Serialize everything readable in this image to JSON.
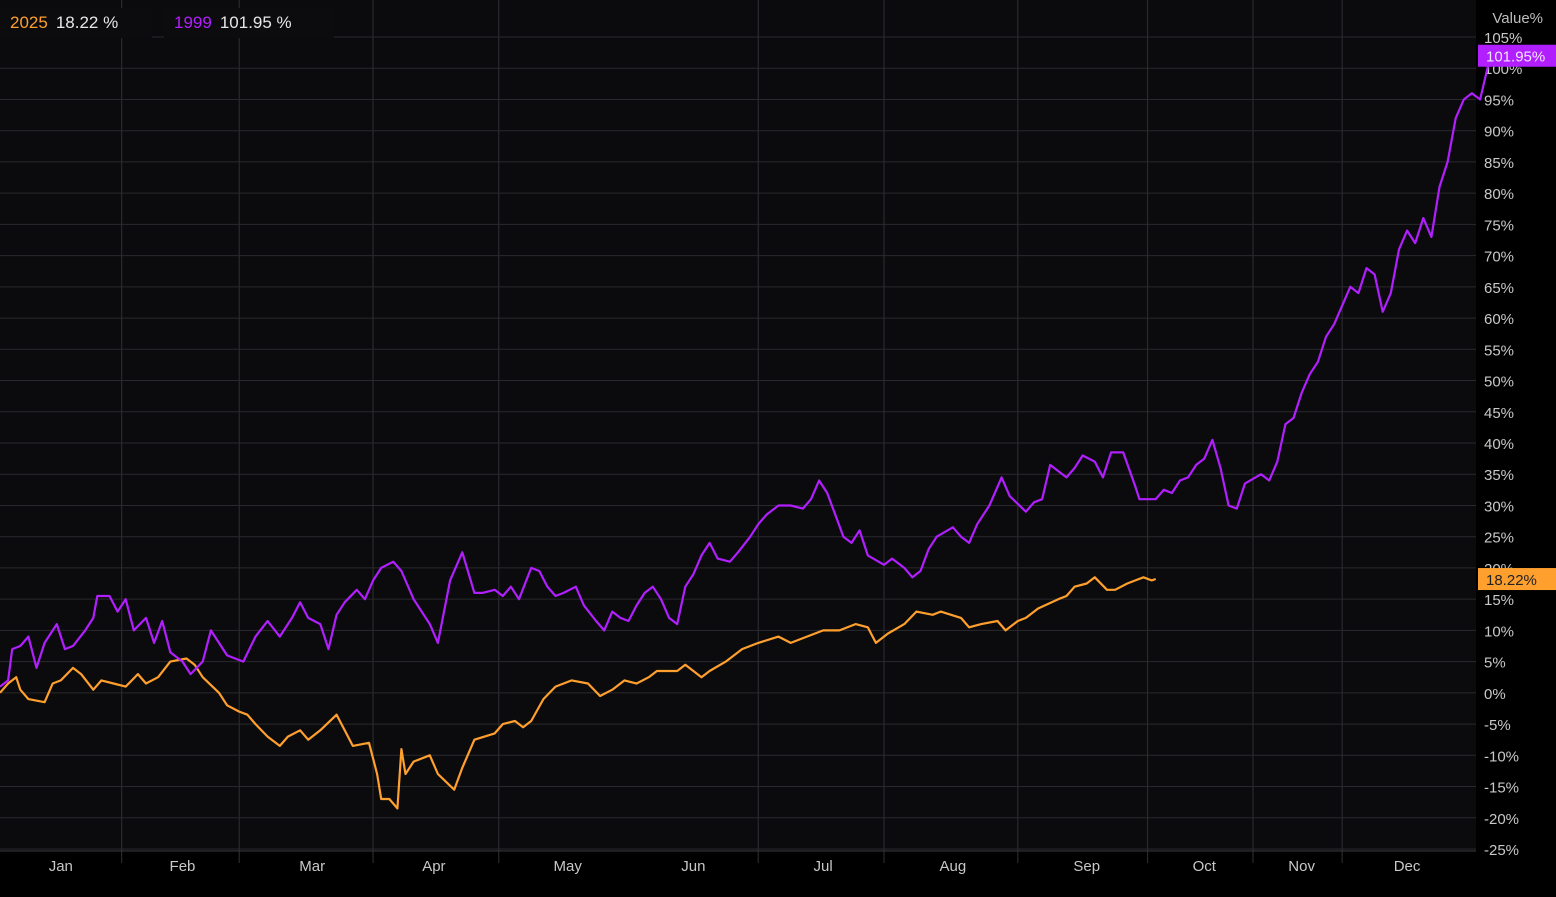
{
  "legend": [
    {
      "year": "2025",
      "value": "18.22 %"
    },
    {
      "year": "1999",
      "value": "101.95 %"
    }
  ],
  "chart_data": {
    "type": "line",
    "ylabel": "Value%",
    "ylim": [
      -25,
      105
    ],
    "ytick_step": 5,
    "x_unit": "day of year",
    "xlim": [
      1,
      365
    ],
    "grid": true,
    "months": [
      "Jan",
      "Feb",
      "Mar",
      "Apr",
      "May",
      "Jun",
      "Jul",
      "Aug",
      "Sep",
      "Oct",
      "Nov",
      "Dec"
    ],
    "month_ticks": [
      {
        "label": "Jan",
        "x": 16
      },
      {
        "label": "Feb",
        "x": 46
      },
      {
        "label": "Mar",
        "x": 78
      },
      {
        "label": "Apr",
        "x": 108
      },
      {
        "label": "May",
        "x": 141
      },
      {
        "label": "Jun",
        "x": 172
      },
      {
        "label": "Jul",
        "x": 204
      },
      {
        "label": "Aug",
        "x": 236
      },
      {
        "label": "Sep",
        "x": 269
      },
      {
        "label": "Oct",
        "x": 298
      },
      {
        "label": "Nov",
        "x": 322
      },
      {
        "label": "Dec",
        "x": 348
      }
    ],
    "boundaries": [
      31,
      60,
      93,
      124,
      188,
      219,
      252,
      284,
      310,
      332
    ],
    "series": [
      {
        "name": "2025",
        "color": "#ff9f2e",
        "end_label": "18.22%",
        "points": [
          [
            1,
            0
          ],
          [
            3,
            1.5
          ],
          [
            5,
            2.5
          ],
          [
            6,
            0.5
          ],
          [
            8,
            -1
          ],
          [
            12,
            -1.5
          ],
          [
            14,
            1.5
          ],
          [
            16,
            2
          ],
          [
            19,
            4
          ],
          [
            21,
            3
          ],
          [
            24,
            0.5
          ],
          [
            26,
            2
          ],
          [
            29,
            1.5
          ],
          [
            32,
            1
          ],
          [
            35,
            3
          ],
          [
            37,
            1.5
          ],
          [
            40,
            2.5
          ],
          [
            43,
            5
          ],
          [
            47,
            5.5
          ],
          [
            49,
            4.5
          ],
          [
            51,
            2.5
          ],
          [
            55,
            0
          ],
          [
            57,
            -2
          ],
          [
            60,
            -3
          ],
          [
            62,
            -3.5
          ],
          [
            64,
            -5
          ],
          [
            67,
            -7
          ],
          [
            70,
            -8.5
          ],
          [
            72,
            -7
          ],
          [
            75,
            -6
          ],
          [
            77,
            -7.5
          ],
          [
            80,
            -6
          ],
          [
            84,
            -3.5
          ],
          [
            86,
            -6
          ],
          [
            88,
            -8.5
          ],
          [
            92,
            -8
          ],
          [
            94,
            -13
          ],
          [
            95,
            -17
          ],
          [
            97,
            -17
          ],
          [
            99,
            -18.5
          ],
          [
            100,
            -9
          ],
          [
            101,
            -13
          ],
          [
            103,
            -11
          ],
          [
            107,
            -10
          ],
          [
            109,
            -13
          ],
          [
            113,
            -15.5
          ],
          [
            115,
            -12
          ],
          [
            118,
            -7.5
          ],
          [
            123,
            -6.5
          ],
          [
            125,
            -5
          ],
          [
            128,
            -4.5
          ],
          [
            130,
            -5.5
          ],
          [
            132,
            -4.5
          ],
          [
            135,
            -1
          ],
          [
            138,
            1
          ],
          [
            142,
            2
          ],
          [
            146,
            1.5
          ],
          [
            149,
            -0.5
          ],
          [
            152,
            0.5
          ],
          [
            155,
            2
          ],
          [
            158,
            1.5
          ],
          [
            161,
            2.5
          ],
          [
            163,
            3.5
          ],
          [
            168,
            3.5
          ],
          [
            170,
            4.5
          ],
          [
            174,
            2.5
          ],
          [
            176,
            3.5
          ],
          [
            180,
            5
          ],
          [
            184,
            7
          ],
          [
            188,
            8
          ],
          [
            193,
            9
          ],
          [
            196,
            8
          ],
          [
            200,
            9
          ],
          [
            204,
            10
          ],
          [
            208,
            10
          ],
          [
            212,
            11
          ],
          [
            215,
            10.5
          ],
          [
            217,
            8
          ],
          [
            220,
            9.5
          ],
          [
            224,
            11
          ],
          [
            227,
            13
          ],
          [
            231,
            12.5
          ],
          [
            233,
            13
          ],
          [
            238,
            12
          ],
          [
            240,
            10.5
          ],
          [
            243,
            11
          ],
          [
            247,
            11.5
          ],
          [
            249,
            10
          ],
          [
            252,
            11.5
          ],
          [
            254,
            12
          ],
          [
            257,
            13.5
          ],
          [
            262,
            15
          ],
          [
            264,
            15.5
          ],
          [
            266,
            17
          ],
          [
            269,
            17.5
          ],
          [
            271,
            18.5
          ],
          [
            274,
            16.5
          ],
          [
            276,
            16.5
          ],
          [
            279,
            17.5
          ],
          [
            281,
            18
          ],
          [
            283,
            18.5
          ],
          [
            285,
            18
          ],
          [
            286,
            18.22
          ]
        ]
      },
      {
        "name": "1999",
        "color": "#b11fff",
        "end_label": "101.95%",
        "points": [
          [
            1,
            1
          ],
          [
            3,
            2
          ],
          [
            4,
            7
          ],
          [
            6,
            7.5
          ],
          [
            8,
            9
          ],
          [
            10,
            4
          ],
          [
            12,
            8
          ],
          [
            15,
            11
          ],
          [
            17,
            7
          ],
          [
            19,
            7.5
          ],
          [
            22,
            10
          ],
          [
            24,
            12
          ],
          [
            25,
            15.5
          ],
          [
            28,
            15.5
          ],
          [
            30,
            13
          ],
          [
            32,
            15
          ],
          [
            34,
            10
          ],
          [
            37,
            12
          ],
          [
            39,
            8
          ],
          [
            41,
            11.5
          ],
          [
            43,
            6.5
          ],
          [
            46,
            5
          ],
          [
            48,
            3
          ],
          [
            51,
            5
          ],
          [
            53,
            10
          ],
          [
            57,
            6
          ],
          [
            59,
            5.5
          ],
          [
            61,
            5
          ],
          [
            64,
            9
          ],
          [
            67,
            11.5
          ],
          [
            70,
            9
          ],
          [
            73,
            12
          ],
          [
            75,
            14.5
          ],
          [
            77,
            12
          ],
          [
            80,
            11
          ],
          [
            82,
            7
          ],
          [
            84,
            12.5
          ],
          [
            86,
            14.5
          ],
          [
            89,
            16.5
          ],
          [
            91,
            15
          ],
          [
            93,
            18
          ],
          [
            95,
            20
          ],
          [
            98,
            21
          ],
          [
            100,
            19.5
          ],
          [
            103,
            15
          ],
          [
            107,
            11
          ],
          [
            109,
            8
          ],
          [
            112,
            18
          ],
          [
            115,
            22.5
          ],
          [
            118,
            16
          ],
          [
            120,
            16
          ],
          [
            123,
            16.5
          ],
          [
            125,
            15.5
          ],
          [
            127,
            17
          ],
          [
            129,
            15
          ],
          [
            132,
            20
          ],
          [
            134,
            19.5
          ],
          [
            136,
            17
          ],
          [
            138,
            15.5
          ],
          [
            140,
            16
          ],
          [
            143,
            17
          ],
          [
            145,
            14
          ],
          [
            148,
            11.5
          ],
          [
            150,
            10
          ],
          [
            152,
            13
          ],
          [
            154,
            12
          ],
          [
            156,
            11.5
          ],
          [
            158,
            14
          ],
          [
            160,
            16
          ],
          [
            162,
            17
          ],
          [
            164,
            15
          ],
          [
            166,
            12
          ],
          [
            168,
            11
          ],
          [
            170,
            17
          ],
          [
            172,
            19
          ],
          [
            174,
            22
          ],
          [
            176,
            24
          ],
          [
            178,
            21.5
          ],
          [
            181,
            21
          ],
          [
            183,
            22.5
          ],
          [
            186,
            25
          ],
          [
            188,
            27
          ],
          [
            190,
            28.5
          ],
          [
            193,
            30
          ],
          [
            196,
            30
          ],
          [
            199,
            29.5
          ],
          [
            201,
            31
          ],
          [
            203,
            34
          ],
          [
            205,
            32
          ],
          [
            207,
            28.5
          ],
          [
            209,
            25
          ],
          [
            211,
            24
          ],
          [
            213,
            26
          ],
          [
            215,
            22
          ],
          [
            219,
            20.5
          ],
          [
            221,
            21.5
          ],
          [
            224,
            20
          ],
          [
            226,
            18.5
          ],
          [
            228,
            19.5
          ],
          [
            230,
            23
          ],
          [
            232,
            25
          ],
          [
            236,
            26.5
          ],
          [
            238,
            25
          ],
          [
            240,
            24
          ],
          [
            242,
            27
          ],
          [
            245,
            30
          ],
          [
            248,
            34.5
          ],
          [
            250,
            31.5
          ],
          [
            254,
            29
          ],
          [
            256,
            30.5
          ],
          [
            258,
            31
          ],
          [
            260,
            36.5
          ],
          [
            262,
            35.5
          ],
          [
            264,
            34.5
          ],
          [
            266,
            36
          ],
          [
            268,
            38
          ],
          [
            271,
            37
          ],
          [
            273,
            34.5
          ],
          [
            275,
            38.5
          ],
          [
            278,
            38.5
          ],
          [
            281,
            33
          ],
          [
            282,
            31
          ],
          [
            286,
            31
          ],
          [
            288,
            32.5
          ],
          [
            290,
            32
          ],
          [
            292,
            34
          ],
          [
            294,
            34.5
          ],
          [
            296,
            36.5
          ],
          [
            298,
            37.5
          ],
          [
            300,
            40.5
          ],
          [
            302,
            36
          ],
          [
            304,
            30
          ],
          [
            306,
            29.5
          ],
          [
            308,
            33.5
          ],
          [
            312,
            35
          ],
          [
            314,
            34
          ],
          [
            316,
            37
          ],
          [
            318,
            43
          ],
          [
            320,
            44
          ],
          [
            322,
            48
          ],
          [
            324,
            51
          ],
          [
            326,
            53
          ],
          [
            328,
            57
          ],
          [
            330,
            59
          ],
          [
            332,
            62
          ],
          [
            334,
            65
          ],
          [
            336,
            64
          ],
          [
            338,
            68
          ],
          [
            340,
            67
          ],
          [
            342,
            61
          ],
          [
            344,
            64
          ],
          [
            346,
            71
          ],
          [
            348,
            74
          ],
          [
            350,
            72
          ],
          [
            352,
            76
          ],
          [
            354,
            73
          ],
          [
            356,
            81
          ],
          [
            358,
            85
          ],
          [
            360,
            92
          ],
          [
            362,
            95
          ],
          [
            364,
            96
          ],
          [
            366,
            95
          ],
          [
            368,
            100.5
          ],
          [
            370,
            102
          ]
        ]
      }
    ]
  }
}
